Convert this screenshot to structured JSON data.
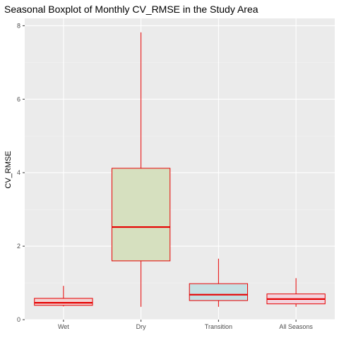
{
  "chart_data": {
    "type": "boxplot",
    "title": "Seasonal Boxplot of Monthly CV_RMSE in the Study Area",
    "xlabel": "",
    "ylabel": "CV_RMSE",
    "ylim": [
      0,
      8.2
    ],
    "y_ticks": [
      0,
      2,
      4,
      6,
      8
    ],
    "grid": true,
    "legend": "none",
    "colors": {
      "panel": "#ebebeb",
      "grid_major": "#ffffff",
      "grid_minor": "#f4f4f4",
      "outline": "#e60000",
      "median": "#e60000"
    },
    "categories": [
      "Wet",
      "Dry",
      "Transition",
      "All Seasons"
    ],
    "boxes": [
      {
        "category": "Wet",
        "min": 0.36,
        "q1": 0.39,
        "median": 0.46,
        "q3": 0.58,
        "max": 0.92,
        "fill": "#f2d4d4"
      },
      {
        "category": "Dry",
        "min": 0.35,
        "q1": 1.6,
        "median": 2.52,
        "q3": 4.12,
        "max": 7.82,
        "fill": "#d6e0bf"
      },
      {
        "category": "Transition",
        "min": 0.35,
        "q1": 0.52,
        "median": 0.68,
        "q3": 0.98,
        "max": 1.66,
        "fill": "#c6e0e3"
      },
      {
        "category": "All Seasons",
        "min": 0.35,
        "q1": 0.43,
        "median": 0.56,
        "q3": 0.7,
        "max": 1.13,
        "fill": "#f2d3dd"
      }
    ]
  }
}
